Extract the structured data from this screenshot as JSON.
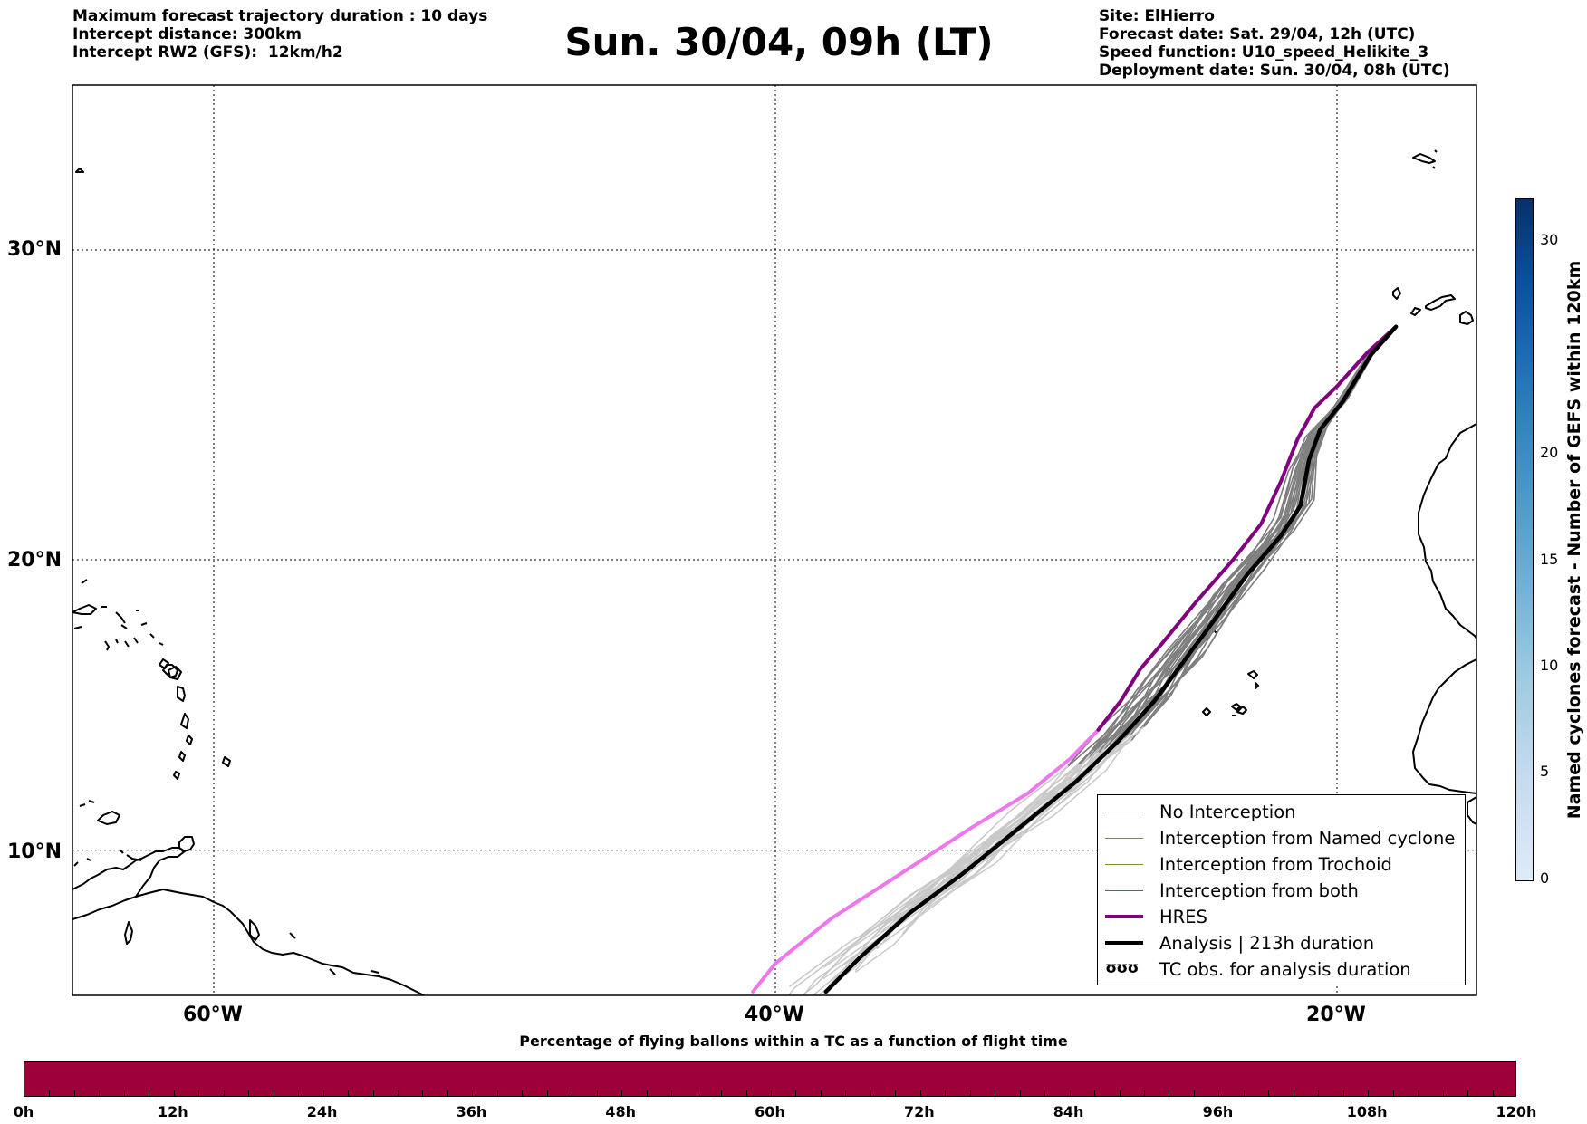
{
  "header_left": [
    "Maximum forecast trajectory duration : 10 days",
    "Intercept distance: 300km",
    "Intercept RW2 (GFS):  12km/h2"
  ],
  "header_right": [
    "Site: ElHierro",
    "Forecast date: Sat. 29/04, 12h (UTC)",
    "Speed function: U10_speed_Helikite_3",
    "Deployment date: Sun. 30/04, 08h (UTC)"
  ],
  "title": "Sun. 30/04, 09h (LT)",
  "map": {
    "lat_labels": [
      "30°N",
      "20°N",
      "10°N"
    ],
    "lon_labels": [
      "60°W",
      "40°W",
      "20°W"
    ],
    "lon_range": [
      -65,
      -15
    ],
    "lat_range": [
      5,
      34
    ],
    "grid": "on"
  },
  "legend": {
    "items": [
      {
        "label": "No Interception",
        "color": "#808080",
        "kind": "thin"
      },
      {
        "label": "Interception from Named cyclone",
        "color": "#e8571f",
        "kind": "thin"
      },
      {
        "label": "Interception from Trochoid",
        "color": "#8a8a2a",
        "kind": "thin"
      },
      {
        "label": "Interception from both",
        "color": "#2a8a2a",
        "kind": "thin"
      },
      {
        "label": "HRES",
        "color": "#800080",
        "kind": "thick"
      },
      {
        "label": "Analysis | 213h duration",
        "color": "#000000",
        "kind": "thick"
      },
      {
        "label": "TC obs. for analysis duration",
        "color": "#000000",
        "kind": "symbol",
        "symbol": "ʊʊʊ"
      }
    ]
  },
  "colorbar_right": {
    "title": "Named cyclones forecast - Number of GEFS within 120km",
    "ticks": [
      "0",
      "5",
      "10",
      "15",
      "20",
      "30"
    ],
    "range": [
      0,
      32
    ],
    "colors": [
      "#deebf7",
      "#08306b"
    ]
  },
  "colorbar_bottom": {
    "title": "Percentage of flying ballons within a TC as a function of flight time",
    "ticks": [
      "0h",
      "12h",
      "24h",
      "36h",
      "48h",
      "60h",
      "72h",
      "84h",
      "96h",
      "108h",
      "120h"
    ],
    "fill_color": "#9e003a"
  },
  "trajectories": {
    "launch": {
      "lon": -17.9,
      "lat": 27.6
    },
    "hres": [
      [
        -17.9,
        27.6
      ],
      [
        -18.9,
        26.8
      ],
      [
        -20.0,
        25.7
      ],
      [
        -20.8,
        25.0
      ],
      [
        -21.4,
        24.0
      ],
      [
        -22.0,
        22.6
      ],
      [
        -22.7,
        21.2
      ],
      [
        -23.7,
        20.0
      ],
      [
        -25.0,
        18.6
      ],
      [
        -26.2,
        17.2
      ],
      [
        -27.0,
        16.3
      ],
      [
        -27.7,
        15.2
      ],
      [
        -28.5,
        14.2
      ],
      [
        -29.5,
        13.2
      ],
      [
        -31.0,
        12.0
      ],
      [
        -33.0,
        10.8
      ],
      [
        -35.5,
        9.2
      ],
      [
        -38.0,
        7.6
      ],
      [
        -40.0,
        6.0
      ],
      [
        -40.8,
        5.0
      ]
    ],
    "analysis": [
      [
        -17.9,
        27.6
      ],
      [
        -18.8,
        26.7
      ],
      [
        -19.8,
        25.2
      ],
      [
        -20.6,
        24.3
      ],
      [
        -21.0,
        23.3
      ],
      [
        -21.3,
        21.8
      ],
      [
        -22.0,
        20.8
      ],
      [
        -23.2,
        19.5
      ],
      [
        -24.5,
        17.8
      ],
      [
        -25.5,
        16.5
      ],
      [
        -26.5,
        15.2
      ],
      [
        -27.8,
        13.8
      ],
      [
        -29.3,
        12.4
      ],
      [
        -31.3,
        10.8
      ],
      [
        -33.3,
        9.2
      ],
      [
        -35.2,
        7.8
      ],
      [
        -37.0,
        6.2
      ],
      [
        -38.2,
        5.0
      ]
    ]
  }
}
